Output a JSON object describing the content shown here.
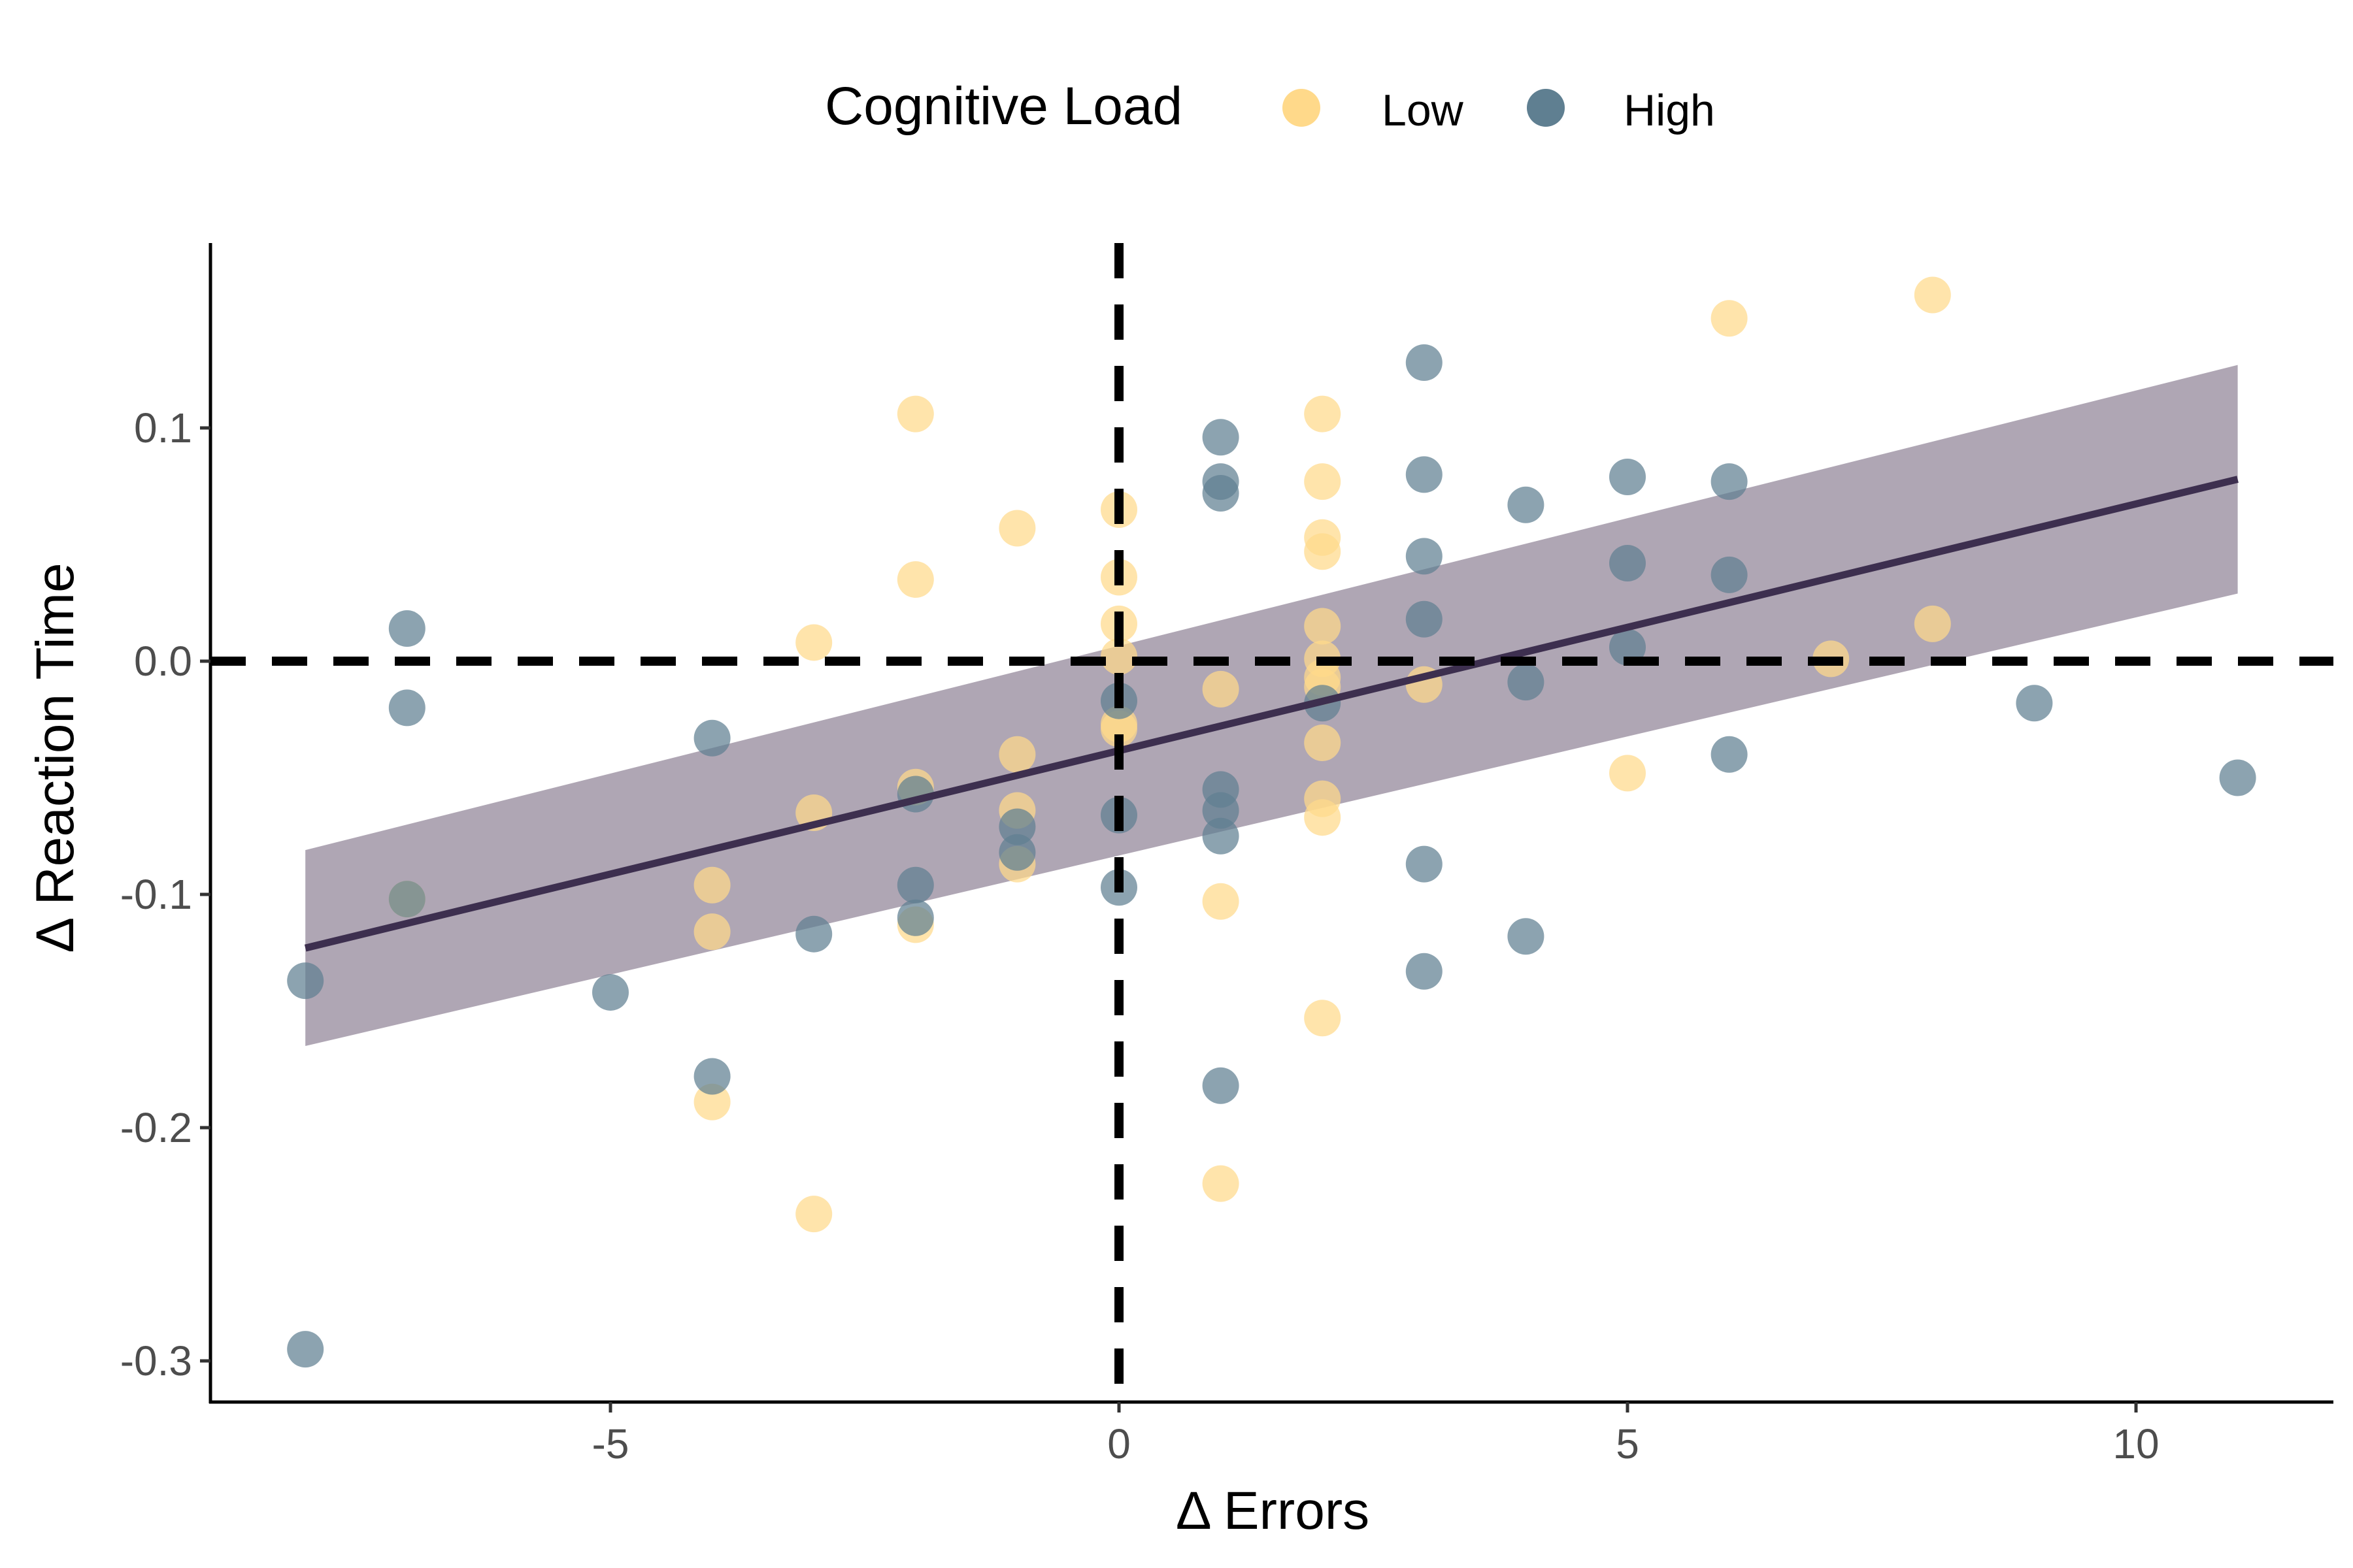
{
  "chart_data": {
    "type": "scatter",
    "xlabel": "Δ Errors",
    "ylabel": "Δ Reaction Time",
    "xlim": [
      -8.6,
      11.9
    ],
    "ylim": [
      -0.318,
      0.178
    ],
    "x_ticks": [
      -5,
      0,
      5,
      10
    ],
    "x_tick_labels": [
      "-5",
      "0",
      "5",
      "10"
    ],
    "y_ticks": [
      -0.3,
      -0.2,
      -0.1,
      0.0,
      0.1
    ],
    "y_tick_labels": [
      "-0.3",
      "-0.2",
      "-0.1",
      "0.0",
      "0.1"
    ],
    "grid": false,
    "legend": {
      "title": "Cognitive Load",
      "position": "top",
      "entries": [
        {
          "label": "Low",
          "color": "#FFD98A"
        },
        {
          "label": "High",
          "color": "#5F7F91"
        }
      ]
    },
    "reference_lines": {
      "x": 0,
      "y": 0
    },
    "series": [
      {
        "name": "Low",
        "color": "#FFD98A",
        "points": [
          [
            -3,
            0.008
          ],
          [
            -2,
            0.106
          ],
          [
            -2,
            0.035
          ],
          [
            -1,
            0.057
          ],
          [
            0,
            0.065
          ],
          [
            0,
            0.036
          ],
          [
            0,
            0.016
          ],
          [
            0,
            0.002
          ],
          [
            0,
            -0.027
          ],
          [
            0,
            -0.029
          ],
          [
            1,
            -0.012
          ],
          [
            1,
            -0.103
          ],
          [
            1,
            -0.224
          ],
          [
            2,
            0.106
          ],
          [
            2,
            0.077
          ],
          [
            2,
            0.053
          ],
          [
            2,
            0.047
          ],
          [
            2,
            0.015
          ],
          [
            2,
            0.001
          ],
          [
            2,
            -0.007
          ],
          [
            2,
            -0.011
          ],
          [
            2,
            -0.035
          ],
          [
            2,
            -0.059
          ],
          [
            2,
            -0.067
          ],
          [
            2,
            -0.153
          ],
          [
            3,
            -0.01
          ],
          [
            5,
            -0.048
          ],
          [
            6,
            0.147
          ],
          [
            7,
            0.001
          ],
          [
            8,
            0.157
          ],
          [
            8,
            0.016
          ],
          [
            -1,
            -0.04
          ],
          [
            -1,
            -0.064
          ],
          [
            -1,
            -0.087
          ],
          [
            -2,
            -0.054
          ],
          [
            -2,
            -0.113
          ],
          [
            -3,
            -0.065
          ],
          [
            -3,
            -0.237
          ],
          [
            -4,
            -0.096
          ],
          [
            -4,
            -0.116
          ],
          [
            -4,
            -0.189
          ],
          [
            -7,
            -0.102
          ]
        ]
      },
      {
        "name": "High",
        "color": "#5F7F91",
        "points": [
          [
            -8,
            -0.137
          ],
          [
            -8,
            -0.295
          ],
          [
            -7,
            0.014
          ],
          [
            -7,
            -0.02
          ],
          [
            -7,
            -0.102
          ],
          [
            -5,
            -0.142
          ],
          [
            -4,
            -0.033
          ],
          [
            -4,
            -0.178
          ],
          [
            -3,
            -0.117
          ],
          [
            -2,
            -0.057
          ],
          [
            -2,
            -0.096
          ],
          [
            -2,
            -0.11
          ],
          [
            -1,
            -0.071
          ],
          [
            -1,
            -0.082
          ],
          [
            0,
            -0.017
          ],
          [
            0,
            -0.066
          ],
          [
            0,
            -0.097
          ],
          [
            1,
            0.096
          ],
          [
            1,
            0.077
          ],
          [
            1,
            0.072
          ],
          [
            1,
            -0.055
          ],
          [
            1,
            -0.064
          ],
          [
            1,
            -0.075
          ],
          [
            1,
            -0.182
          ],
          [
            2,
            -0.018
          ],
          [
            3,
            0.128
          ],
          [
            3,
            0.08
          ],
          [
            3,
            0.045
          ],
          [
            3,
            0.018
          ],
          [
            3,
            -0.087
          ],
          [
            3,
            -0.133
          ],
          [
            4,
            0.067
          ],
          [
            4,
            -0.009
          ],
          [
            4,
            -0.118
          ],
          [
            5,
            0.079
          ],
          [
            5,
            0.042
          ],
          [
            5,
            0.006
          ],
          [
            6,
            0.077
          ],
          [
            6,
            0.037
          ],
          [
            6,
            -0.04
          ],
          [
            9,
            -0.018
          ],
          [
            11,
            -0.05
          ]
        ]
      }
    ],
    "fit_line": {
      "color": "#3D2F4F",
      "band_color": "#7A6A82",
      "x": [
        -8,
        11
      ],
      "y": [
        -0.123,
        0.078
      ],
      "band_lower": [
        -0.165,
        0.029
      ],
      "band_upper": [
        -0.081,
        0.127
      ]
    }
  }
}
